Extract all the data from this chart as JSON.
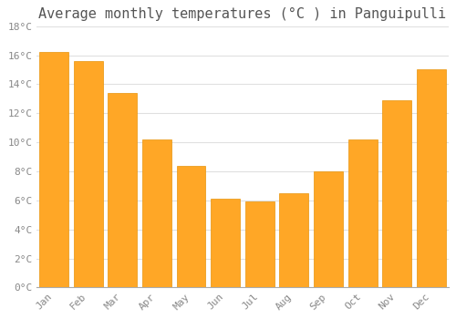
{
  "title": "Average monthly temperatures (°C ) in Panguipulli",
  "months": [
    "Jan",
    "Feb",
    "Mar",
    "Apr",
    "May",
    "Jun",
    "Jul",
    "Aug",
    "Sep",
    "Oct",
    "Nov",
    "Dec"
  ],
  "values": [
    16.2,
    15.6,
    13.4,
    10.2,
    8.4,
    6.1,
    5.9,
    6.5,
    8.0,
    10.2,
    12.9,
    15.0
  ],
  "bar_color": "#FFA726",
  "bar_edge_color": "#E8940A",
  "ylim": [
    0,
    18
  ],
  "yticks": [
    0,
    2,
    4,
    6,
    8,
    10,
    12,
    14,
    16,
    18
  ],
  "ytick_labels": [
    "0°C",
    "2°C",
    "4°C",
    "6°C",
    "8°C",
    "10°C",
    "12°C",
    "14°C",
    "16°C",
    "18°C"
  ],
  "background_color": "#ffffff",
  "grid_color": "#e0e0e0",
  "title_fontsize": 11,
  "tick_fontsize": 8,
  "tick_color": "#888888",
  "bar_width": 0.85
}
